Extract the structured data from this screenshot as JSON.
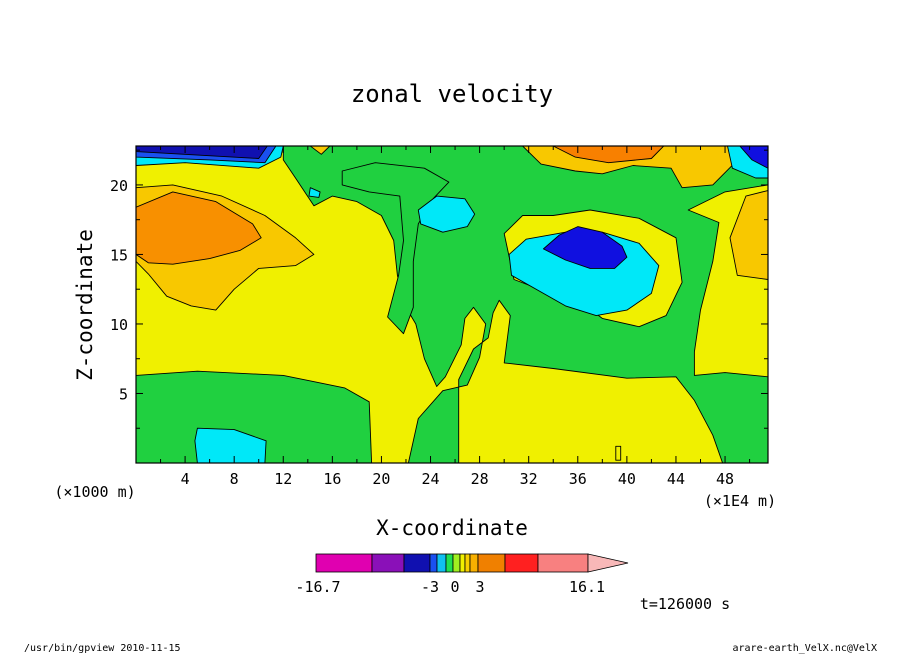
{
  "chart_data": {
    "type": "heatmap",
    "title": "zonal velocity",
    "xlabel": "X-coordinate",
    "ylabel": "Z-coordinate",
    "x_units_left": "(×1000 m)",
    "x_units_right": "(×1E4 m)",
    "xlim": [
      0,
      51.5
    ],
    "ylim": [
      0,
      22.8
    ],
    "x_ticks": [
      "4",
      "8",
      "12",
      "16",
      "20",
      "24",
      "28",
      "32",
      "36",
      "40",
      "44",
      "48"
    ],
    "y_ticks": [
      "5",
      "10",
      "15",
      "20"
    ],
    "colorbar": {
      "min_label": "-16.7",
      "max_label": "16.1",
      "tick_labels": [
        "-3",
        "0",
        "3"
      ],
      "colors": [
        "#e000b0",
        "#8a10b8",
        "#1010b0",
        "#1a50f0",
        "#10c0f0",
        "#20e050",
        "#a0f020",
        "#f0f000",
        "#f8d000",
        "#f8b000",
        "#f08000",
        "#ff2020",
        "#f88080",
        "#f8b8b8"
      ]
    },
    "regions": [
      {
        "color": "#f0f000",
        "level": "0 to 3",
        "polygon": [
          [
            0,
            0
          ],
          [
            51.5,
            0
          ],
          [
            51.5,
            22.8
          ],
          [
            0,
            22.8
          ]
        ]
      },
      {
        "color": "#20d040",
        "level": "-3 to 0",
        "polygon": [
          [
            0,
            6.3
          ],
          [
            5,
            6.6
          ],
          [
            12,
            6.3
          ],
          [
            17,
            5.4
          ],
          [
            19,
            4.4
          ],
          [
            19.2,
            0
          ],
          [
            0,
            0
          ]
        ]
      },
      {
        "color": "#20d040",
        "level": "-3 to 0",
        "polygon": [
          [
            22.2,
            0
          ],
          [
            23,
            3.2
          ],
          [
            25,
            5.2
          ],
          [
            27,
            5.6
          ],
          [
            28,
            7.6
          ],
          [
            28.5,
            10
          ],
          [
            27.5,
            11.2
          ],
          [
            26.8,
            10.4
          ],
          [
            26.5,
            8.5
          ],
          [
            25.2,
            6.2
          ],
          [
            24.5,
            5.5
          ],
          [
            23.5,
            7.5
          ],
          [
            22.8,
            10
          ],
          [
            21.8,
            11.5
          ],
          [
            21.3,
            13.5
          ],
          [
            21,
            16
          ],
          [
            20,
            17.8
          ],
          [
            18,
            18.8
          ],
          [
            16,
            19.2
          ],
          [
            14.5,
            18.5
          ],
          [
            13,
            20.5
          ],
          [
            12,
            21.8
          ],
          [
            12,
            22.8
          ],
          [
            51.5,
            22.8
          ],
          [
            51.5,
            20
          ],
          [
            48,
            19.5
          ],
          [
            45,
            18.2
          ],
          [
            47.5,
            17.3
          ],
          [
            47,
            14.5
          ],
          [
            46,
            11
          ],
          [
            45.5,
            8
          ],
          [
            45.5,
            6.3
          ],
          [
            48,
            6.5
          ],
          [
            51.5,
            6.2
          ],
          [
            51.5,
            0
          ],
          [
            47.8,
            0
          ],
          [
            47,
            2
          ],
          [
            45.5,
            4.5
          ],
          [
            44,
            6.2
          ],
          [
            40,
            6.1
          ],
          [
            34,
            6.8
          ],
          [
            30,
            7.2
          ],
          [
            30.5,
            10.6
          ],
          [
            29.6,
            11.7
          ],
          [
            29.1,
            10.8
          ],
          [
            28.7,
            9
          ],
          [
            27.5,
            8.2
          ],
          [
            26.3,
            6
          ],
          [
            26.3,
            0
          ]
        ]
      },
      {
        "color": "#20d040",
        "level": "-3 to 0",
        "polygon": [
          [
            16.8,
            20
          ],
          [
            19,
            19.5
          ],
          [
            21.5,
            19.2
          ],
          [
            21.8,
            16
          ],
          [
            21.4,
            13.5
          ],
          [
            20.5,
            10.5
          ],
          [
            21.8,
            9.3
          ],
          [
            22.6,
            11.2
          ],
          [
            22.6,
            14.5
          ],
          [
            23,
            17.2
          ],
          [
            24.2,
            19
          ],
          [
            25.5,
            20.2
          ],
          [
            23.5,
            21.2
          ],
          [
            19.5,
            21.6
          ],
          [
            16.8,
            21
          ]
        ]
      },
      {
        "color": "#f0f000",
        "level": "0 to 3",
        "polygon": [
          [
            34,
            17.8
          ],
          [
            37,
            18.2
          ],
          [
            41,
            17.6
          ],
          [
            44,
            16.2
          ],
          [
            44.5,
            13
          ],
          [
            43.2,
            10.6
          ],
          [
            41,
            9.8
          ],
          [
            38,
            10.4
          ],
          [
            36.5,
            11.4
          ],
          [
            33.8,
            12.2
          ],
          [
            30.8,
            13.2
          ],
          [
            30,
            16.5
          ],
          [
            31.5,
            17.8
          ]
        ]
      },
      {
        "color": "#00e8f8",
        "level": "-6 to -3",
        "polygon": [
          [
            35,
            16.6
          ],
          [
            38,
            16.6
          ],
          [
            41,
            15.8
          ],
          [
            42.6,
            14.2
          ],
          [
            42,
            12.2
          ],
          [
            40,
            11
          ],
          [
            37.5,
            10.6
          ],
          [
            35,
            11.3
          ],
          [
            33,
            12.3
          ],
          [
            30.6,
            13.5
          ],
          [
            30.4,
            15
          ],
          [
            31.8,
            16.1
          ]
        ]
      },
      {
        "color": "#1010e0",
        "level": "-9 to -6",
        "polygon": [
          [
            34.5,
            16.4
          ],
          [
            36,
            17
          ],
          [
            38,
            16.6
          ],
          [
            39.6,
            15.6
          ],
          [
            40,
            14.8
          ],
          [
            39,
            14
          ],
          [
            37,
            14
          ],
          [
            35,
            14.6
          ],
          [
            33.2,
            15.4
          ]
        ]
      },
      {
        "color": "#00e8f8",
        "level": "-6 to -3",
        "polygon": [
          [
            24.5,
            19.2
          ],
          [
            26.8,
            19
          ],
          [
            27.6,
            17.9
          ],
          [
            27,
            17
          ],
          [
            25,
            16.6
          ],
          [
            23.2,
            17.2
          ],
          [
            23,
            18.2
          ]
        ]
      },
      {
        "color": "#00e8f8",
        "level": "-6 to -3",
        "polygon": [
          [
            14.2,
            19.8
          ],
          [
            15,
            19.5
          ],
          [
            14.9,
            19.1
          ],
          [
            14.1,
            19.2
          ]
        ]
      },
      {
        "color": "#00e8f8",
        "level": "-6 to -3",
        "polygon": [
          [
            5,
            2.5
          ],
          [
            8,
            2.4
          ],
          [
            10.6,
            1.6
          ],
          [
            10.5,
            0
          ],
          [
            5,
            0
          ],
          [
            4.8,
            1.6
          ]
        ]
      },
      {
        "color": "#f8c800",
        "level": "3 to 6",
        "polygon": [
          [
            0,
            19.8
          ],
          [
            3,
            20
          ],
          [
            7,
            19.2
          ],
          [
            10.5,
            17.8
          ],
          [
            13,
            16.2
          ],
          [
            14.5,
            15
          ],
          [
            13,
            14.2
          ],
          [
            10,
            14
          ],
          [
            8,
            12.5
          ],
          [
            6.5,
            11
          ],
          [
            4.5,
            11.3
          ],
          [
            2.5,
            12
          ],
          [
            1,
            13.6
          ],
          [
            0,
            14.5
          ]
        ]
      },
      {
        "color": "#f89000",
        "level": "6 to 9",
        "polygon": [
          [
            0,
            18.4
          ],
          [
            3,
            19.5
          ],
          [
            6.5,
            18.8
          ],
          [
            9.5,
            17.2
          ],
          [
            10.2,
            16.2
          ],
          [
            8.5,
            15.3
          ],
          [
            6,
            14.7
          ],
          [
            3,
            14.3
          ],
          [
            1,
            14.4
          ],
          [
            0,
            15
          ]
        ]
      },
      {
        "color": "#f8c800",
        "level": "3 to 6",
        "polygon": [
          [
            31.5,
            22.8
          ],
          [
            49,
            22.8
          ],
          [
            48.8,
            21.6
          ],
          [
            47,
            20
          ],
          [
            44.5,
            19.8
          ],
          [
            43.6,
            21.2
          ],
          [
            40.5,
            21.4
          ],
          [
            38,
            20.8
          ],
          [
            35.8,
            21
          ],
          [
            33,
            21.5
          ]
        ]
      },
      {
        "color": "#f88000",
        "level": "6 to 9",
        "polygon": [
          [
            34,
            22.8
          ],
          [
            43,
            22.8
          ],
          [
            42,
            21.9
          ],
          [
            38.5,
            21.6
          ],
          [
            35.8,
            22
          ]
        ]
      },
      {
        "color": "#f8c800",
        "level": "3 to 6",
        "polygon": [
          [
            49.7,
            19.2
          ],
          [
            51.5,
            19.6
          ],
          [
            51.5,
            13.2
          ],
          [
            49,
            13.5
          ],
          [
            48.4,
            16.2
          ]
        ]
      },
      {
        "color": "#f8c800",
        "level": "3 to 6",
        "polygon": [
          [
            14.2,
            22.8
          ],
          [
            15.8,
            22.8
          ],
          [
            15.1,
            22.2
          ]
        ]
      },
      {
        "color": "#00e8f8",
        "level": "-6 to -3",
        "polygon": [
          [
            0,
            21.4
          ],
          [
            4,
            21.6
          ],
          [
            10,
            21.2
          ],
          [
            11.8,
            22
          ],
          [
            12,
            22.8
          ],
          [
            0,
            22.8
          ]
        ]
      },
      {
        "color": "#00e8f8",
        "level": "-6 to -3",
        "polygon": [
          [
            48.2,
            22.8
          ],
          [
            51.5,
            22.8
          ],
          [
            51.5,
            20.5
          ],
          [
            50.5,
            20.5
          ],
          [
            48.6,
            21.2
          ]
        ]
      },
      {
        "color": "#1a50f0",
        "level": "-9 to -6",
        "polygon": [
          [
            0,
            22
          ],
          [
            6,
            21.8
          ],
          [
            10.5,
            21.6
          ],
          [
            11.4,
            22.8
          ],
          [
            0,
            22.8
          ]
        ]
      },
      {
        "color": "#1010b0",
        "level": "-12 to -9",
        "polygon": [
          [
            0,
            22.4
          ],
          [
            10,
            21.9
          ],
          [
            10.7,
            22.8
          ],
          [
            0,
            22.8
          ]
        ]
      },
      {
        "color": "#1010e0",
        "level": "-9 to -6",
        "polygon": [
          [
            49.2,
            22.8
          ],
          [
            51.5,
            22.8
          ],
          [
            51.5,
            21.2
          ],
          [
            50.2,
            21.8
          ]
        ]
      },
      {
        "color": "#f0f000",
        "level": "0 to 3",
        "polygon": [
          [
            39.1,
            1.2
          ],
          [
            39.5,
            1.2
          ],
          [
            39.5,
            0.2
          ],
          [
            39.1,
            0.2
          ]
        ]
      }
    ]
  },
  "figure": {
    "time_label": "t=126000 s",
    "footer_left": "/usr/bin/gpview  2010-11-15",
    "footer_right": "arare-earth_VelX.nc@VelX"
  }
}
